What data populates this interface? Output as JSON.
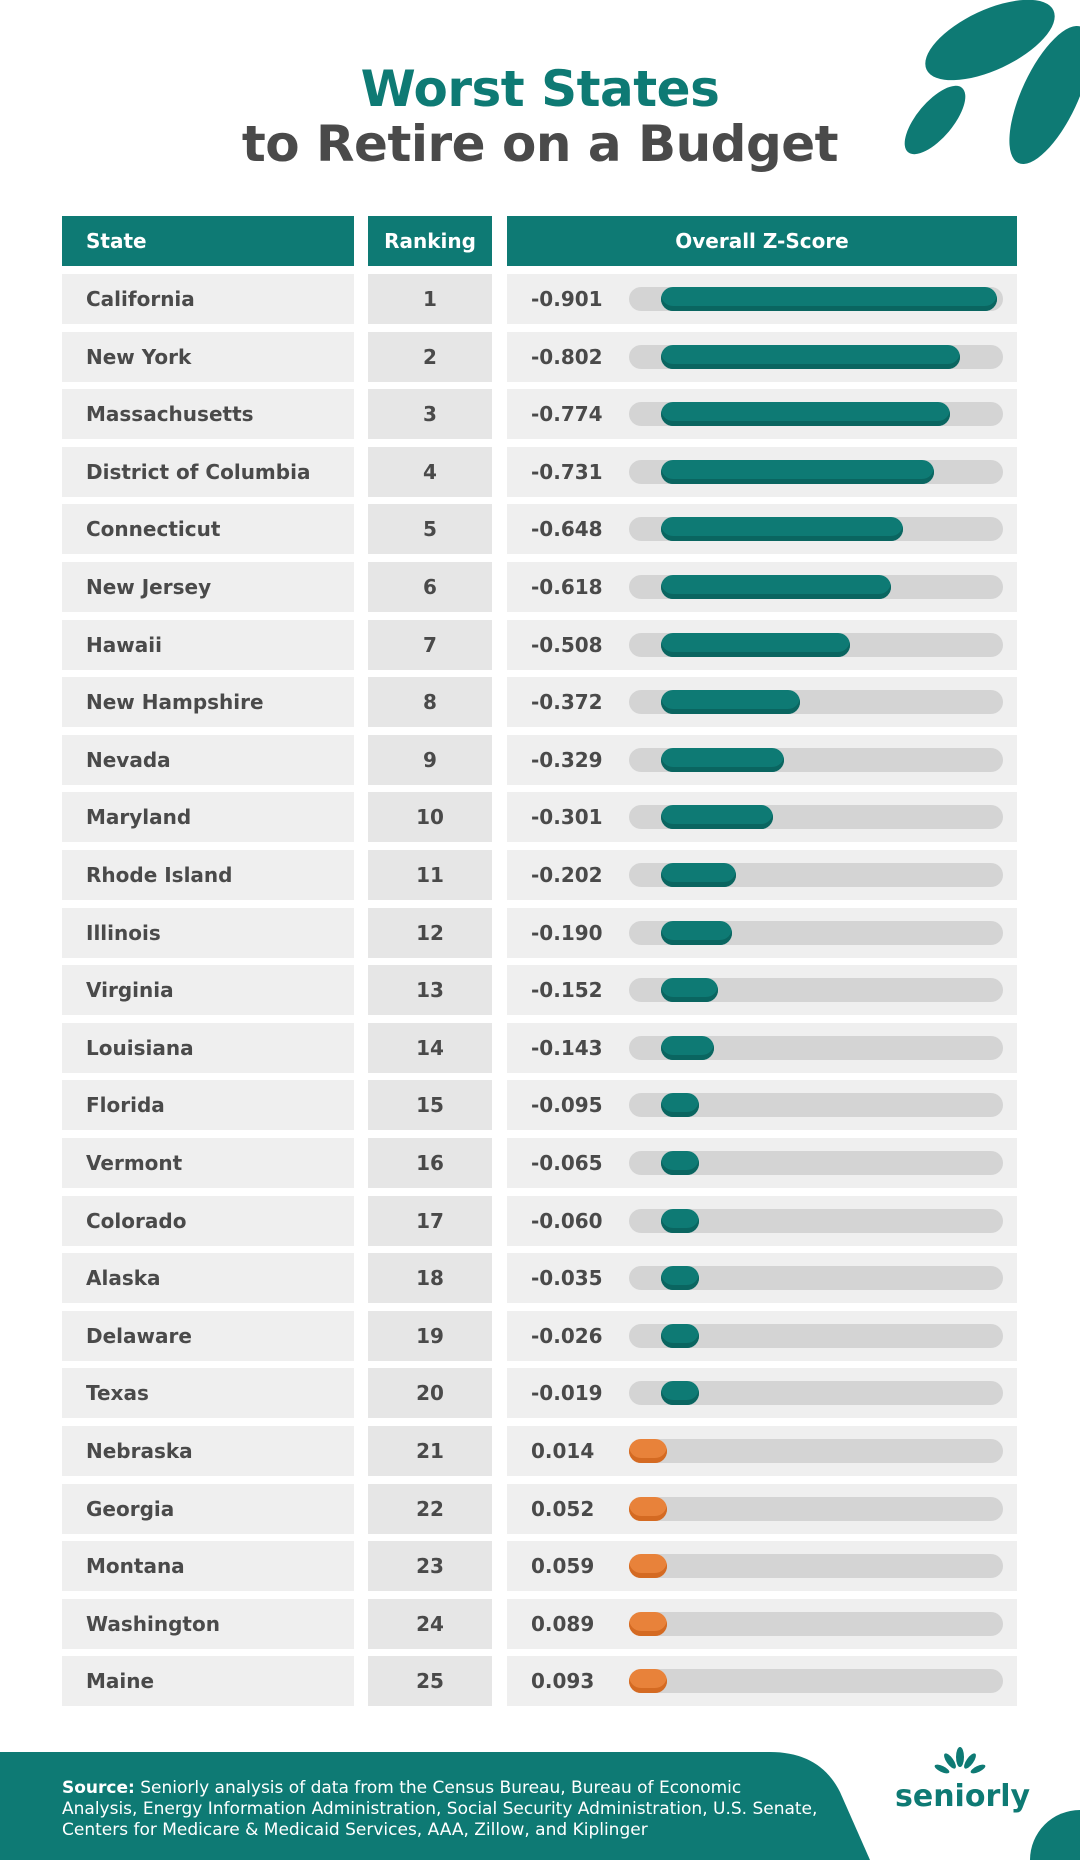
{
  "title": {
    "line1": "Worst States",
    "line2": "to Retire on a Budget"
  },
  "table": {
    "headers": {
      "state": "State",
      "ranking": "Ranking",
      "score": "Overall Z-Score"
    }
  },
  "chart_data": {
    "type": "bar",
    "title": "Worst States to Retire on a Budget",
    "value_label": "Overall Z-Score",
    "categories": [
      "California",
      "New York",
      "Massachusetts",
      "District of Columbia",
      "Connecticut",
      "New Jersey",
      "Hawaii",
      "New Hampshire",
      "Nevada",
      "Maryland",
      "Rhode Island",
      "Illinois",
      "Virginia",
      "Louisiana",
      "Florida",
      "Vermont",
      "Colorado",
      "Alaska",
      "Delaware",
      "Texas",
      "Nebraska",
      "Georgia",
      "Montana",
      "Washington",
      "Maine"
    ],
    "rankings": [
      "1",
      "2",
      "3",
      "4",
      "5",
      "6",
      "7",
      "8",
      "9",
      "10",
      "11",
      "12",
      "13",
      "14",
      "15",
      "16",
      "17",
      "18",
      "19",
      "20",
      "21",
      "22",
      "23",
      "24",
      "25"
    ],
    "values": [
      -0.901,
      -0.802,
      -0.774,
      -0.731,
      -0.648,
      -0.618,
      -0.508,
      -0.372,
      -0.329,
      -0.301,
      -0.202,
      -0.19,
      -0.152,
      -0.143,
      -0.095,
      -0.065,
      -0.06,
      -0.035,
      -0.026,
      -0.019,
      0.014,
      0.052,
      0.059,
      0.089,
      0.093
    ],
    "value_labels": [
      "-0.901",
      "-0.802",
      "-0.774",
      "-0.731",
      "-0.648",
      "-0.618",
      "-0.508",
      "-0.372",
      "-0.329",
      "-0.301",
      "-0.202",
      "-0.190",
      "-0.152",
      "-0.143",
      "-0.095",
      "-0.065",
      "-0.060",
      "-0.035",
      "-0.026",
      "-0.019",
      "0.014",
      "0.052",
      "0.059",
      "0.089",
      "0.093"
    ],
    "colors": {
      "negative": "#0e7a74",
      "positive": "#e8823a",
      "track": "#d4d4d4"
    }
  },
  "footer": {
    "source_label": "Source:",
    "source_text": " Seniorly analysis of data from the Census Bureau, Bureau of Economic Analysis, Energy Information Administration, Social Security Administration, U.S. Senate, Centers for Medicare & Medicaid Services, AAA, Zillow, and Kiplinger"
  },
  "logo": {
    "text": "seniorly"
  },
  "colors": {
    "brand": "#0e7a74",
    "text": "#4a4a4a",
    "accent": "#e8823a"
  }
}
